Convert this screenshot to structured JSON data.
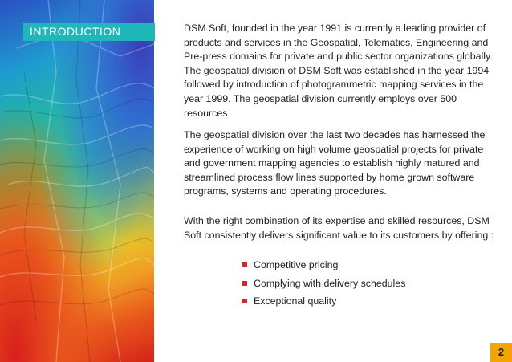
{
  "section": {
    "title": "INTRODUCTION"
  },
  "body": {
    "paragraph_1": "DSM Soft, founded in the year 1991 is currently a leading provider of products and services in the Geospatial, Telematics, Engineering and Pre-press domains for private and public sector organizations globally. The geospatial division of DSM Soft was established in the year 1994 followed by introduction of photogrammetric mapping services in the year 1999. The geospatial division currently employs over 500 resources",
    "paragraph_2": "The geospatial division over the last two decades has harnessed the experience of working on high volume geospatial projects for private and government mapping agencies to establish highly matured and streamlined process flow lines supported by home grown software programs, systems and operating procedures.",
    "paragraph_3": "With the right combination of its expertise and skilled resources, DSM Soft consistently delivers significant value to its customers by offering :",
    "bullets": [
      "Competitive pricing",
      "Complying with delivery schedules",
      "Exceptional quality"
    ]
  },
  "footer": {
    "page_number": "2"
  },
  "colors": {
    "title_bar": "#1fb7b8",
    "bullet": "#d8252a",
    "page_badge": "#f2a400"
  }
}
